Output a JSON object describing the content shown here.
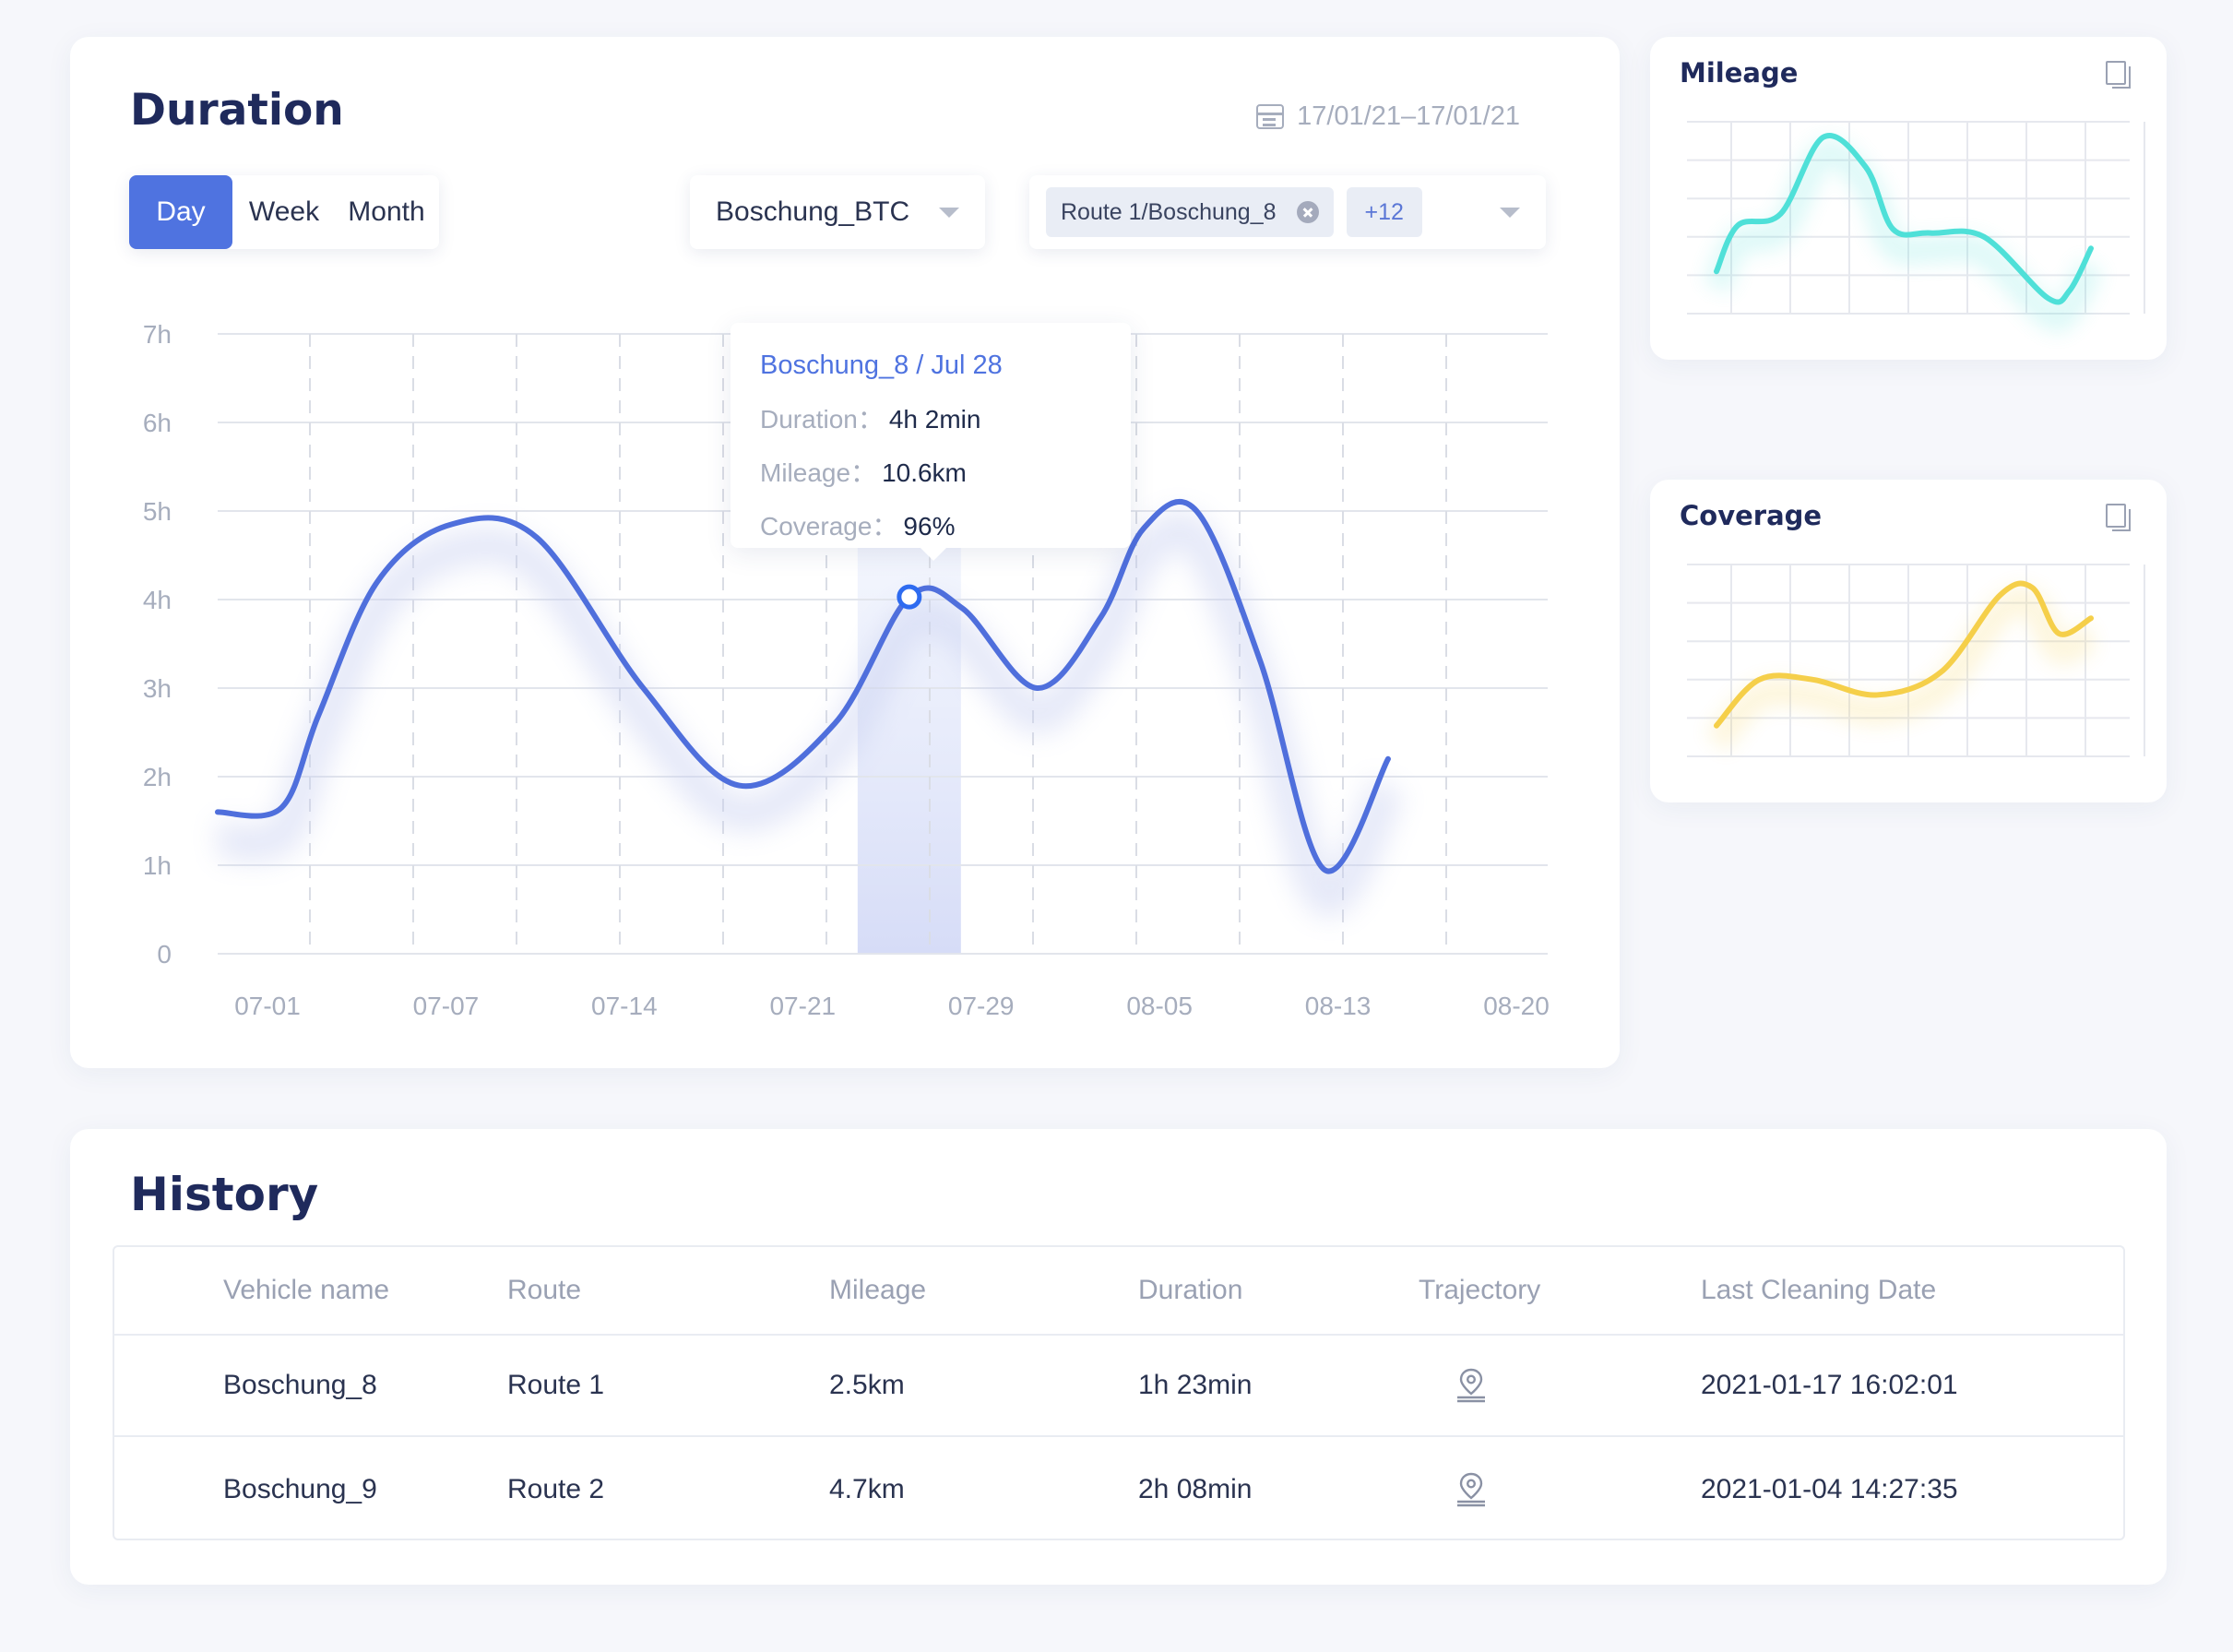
{
  "duration": {
    "title": "Duration",
    "date_range": "17/01/21–17/01/21",
    "periods": [
      "Day",
      "Week",
      "Month"
    ],
    "active_period": "Day",
    "vehicle_select": "Boschung_BTC",
    "route_tag": "Route 1/Boschung_8",
    "route_more": "+12",
    "tooltip": {
      "title": "Boschung_8 / Jul 28",
      "rows": [
        {
          "key": "Duration：",
          "value": "4h 2min"
        },
        {
          "key": "Mileage：",
          "value": "10.6km"
        },
        {
          "key": "Coverage：",
          "value": "96%"
        }
      ]
    }
  },
  "mileage": {
    "title": "Mileage"
  },
  "coverage": {
    "title": "Coverage"
  },
  "history": {
    "title": "History",
    "columns": [
      "Vehicle name",
      "Route",
      "Mileage",
      "Duration",
      "Trajectory",
      "Last Cleaning Date"
    ],
    "rows": [
      {
        "vehicle": "Boschung_8",
        "route": "Route 1",
        "mileage": "2.5km",
        "duration": "1h 23min",
        "trajectory_icon": "location-pin-icon",
        "date": "2021-01-17 16:02:01"
      },
      {
        "vehicle": "Boschung_9",
        "route": "Route  2",
        "mileage": "4.7km",
        "duration": "2h 08min",
        "trajectory_icon": "location-pin-icon",
        "date": "2021-01-04 14:27:35"
      }
    ]
  },
  "chart_data": [
    {
      "type": "line",
      "y_tick_labels": [
        "0",
        "1h",
        "2h",
        "3h",
        "4h",
        "5h",
        "6h",
        "7h"
      ],
      "ylim": [
        0,
        7
      ],
      "x_tick_labels": [
        "07-01",
        "07-07",
        "07-14",
        "07-21",
        "07-29",
        "08-05",
        "08-13",
        "08-20"
      ],
      "x_domain": [
        0,
        12.5
      ],
      "highlight_x": 6.5,
      "highlight_point": {
        "x": 6.5,
        "y": 4.03
      },
      "color": "#4f6fdc",
      "series": [
        {
          "x": [
            0,
            0.6,
            0.95,
            1.5,
            2.2,
            3.0,
            4.0,
            4.9,
            5.8,
            6.5,
            7.0,
            7.7,
            8.3,
            8.7,
            9.2,
            9.8,
            10.4,
            11.0
          ],
          "values": [
            1.6,
            1.65,
            2.7,
            4.2,
            4.85,
            4.7,
            3.0,
            1.9,
            2.6,
            4.03,
            3.9,
            3.0,
            3.8,
            4.8,
            5.0,
            3.3,
            0.95,
            2.2
          ]
        }
      ]
    },
    {
      "type": "line",
      "color": "#4fe0d8",
      "ylim": [
        0,
        5
      ],
      "series": [
        {
          "x": [
            0,
            0.4,
            1.2,
            2.0,
            2.8,
            3.3,
            4.0,
            5.0,
            6.2,
            6.6,
            7.0
          ],
          "values": [
            1.1,
            2.3,
            2.6,
            4.6,
            3.8,
            2.2,
            2.1,
            2.0,
            0.4,
            0.6,
            1.7
          ]
        }
      ]
    },
    {
      "type": "line",
      "color": "#f5cf4a",
      "ylim": [
        0,
        5
      ],
      "series": [
        {
          "x": [
            0,
            0.8,
            1.8,
            3.0,
            4.2,
            5.3,
            5.9,
            6.4,
            7.0
          ],
          "values": [
            0.8,
            2.0,
            2.0,
            1.6,
            2.2,
            4.2,
            4.4,
            3.2,
            3.6
          ]
        }
      ]
    }
  ]
}
